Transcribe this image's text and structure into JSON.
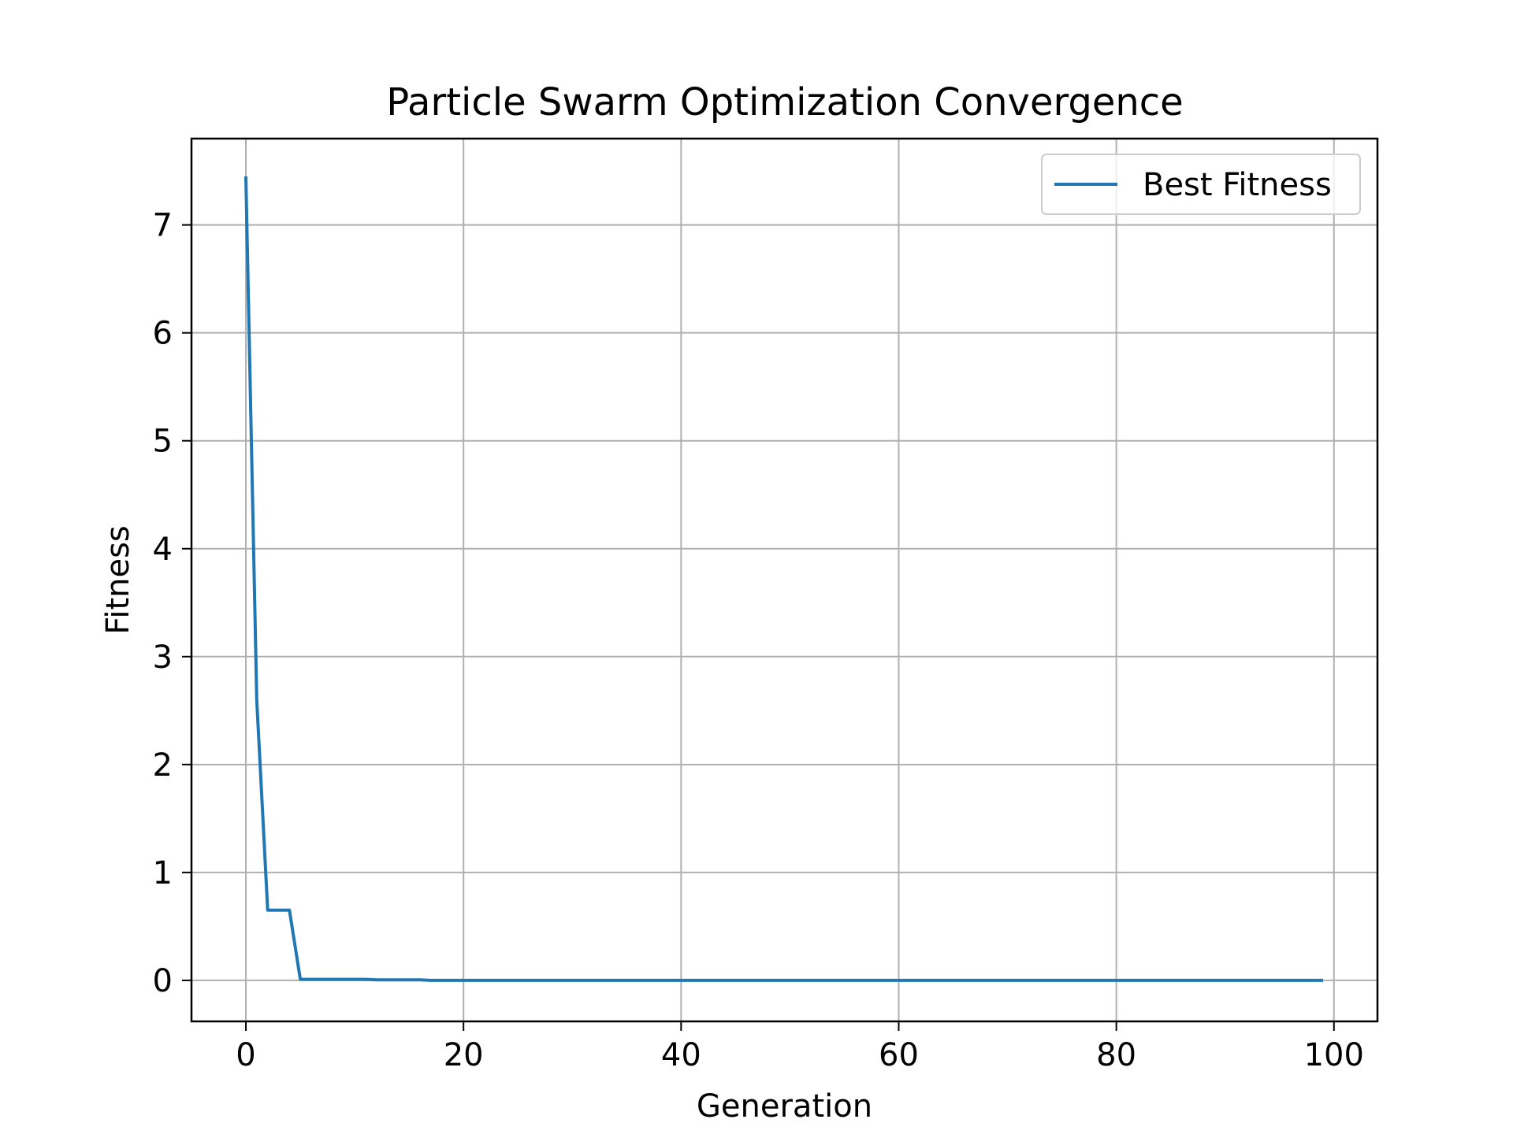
{
  "chart_data": {
    "type": "line",
    "title": "Particle Swarm Optimization Convergence",
    "xlabel": "Generation",
    "ylabel": "Fitness",
    "xlim": [
      -5,
      104
    ],
    "ylim": [
      -0.38,
      7.8
    ],
    "xticks": [
      0,
      20,
      40,
      60,
      80,
      100
    ],
    "yticks": [
      0,
      1,
      2,
      3,
      4,
      5,
      6,
      7
    ],
    "grid": true,
    "legend_position": "top-right",
    "colors": {
      "series": "#1f77b4",
      "grid": "#b0b0b0",
      "axes": "#000000"
    },
    "series": [
      {
        "name": "Best Fitness",
        "x": [
          0,
          1,
          2,
          3,
          4,
          5,
          6,
          7,
          8,
          9,
          10,
          11,
          12,
          13,
          14,
          15,
          16,
          17,
          20,
          30,
          40,
          50,
          60,
          70,
          80,
          90,
          99
        ],
        "y": [
          7.45,
          2.6,
          0.65,
          0.65,
          0.65,
          0.01,
          0.01,
          0.01,
          0.01,
          0.01,
          0.01,
          0.01,
          0.005,
          0.005,
          0.005,
          0.005,
          0.005,
          0.0,
          0.0,
          0.0,
          0.0,
          0.0,
          0.0,
          0.0,
          0.0,
          0.0,
          0.0
        ]
      }
    ]
  }
}
